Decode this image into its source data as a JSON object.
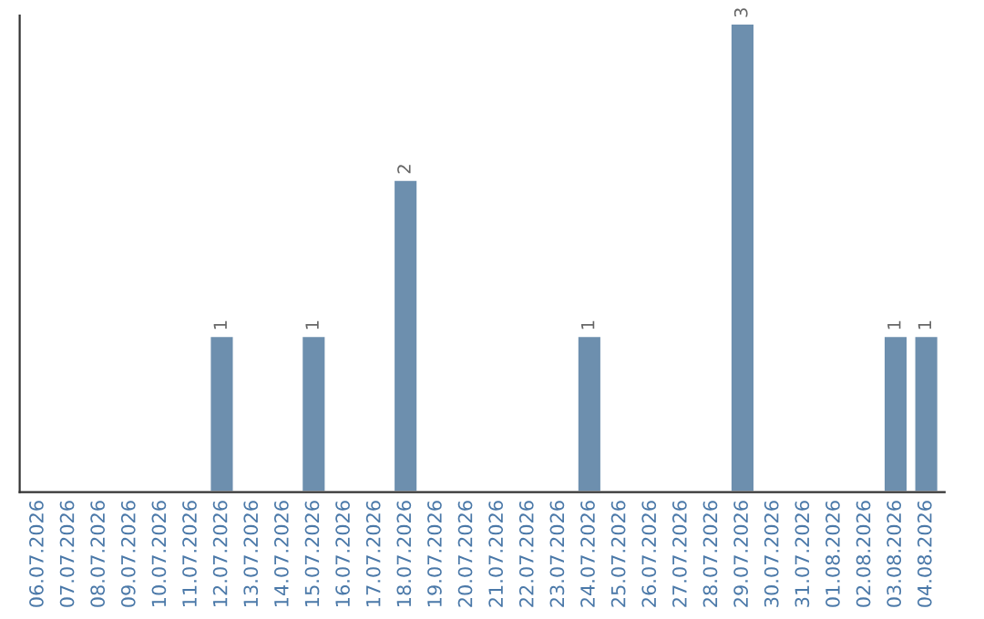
{
  "chart_data": {
    "type": "bar",
    "categories": [
      "06.07.2026",
      "07.07.2026",
      "08.07.2026",
      "09.07.2026",
      "10.07.2026",
      "11.07.2026",
      "12.07.2026",
      "13.07.2026",
      "14.07.2026",
      "15.07.2026",
      "16.07.2026",
      "17.07.2026",
      "18.07.2026",
      "19.07.2026",
      "20.07.2026",
      "21.07.2026",
      "22.07.2026",
      "23.07.2026",
      "24.07.2026",
      "25.07.2026",
      "26.07.2026",
      "27.07.2026",
      "28.07.2026",
      "29.07.2026",
      "30.07.2026",
      "31.07.2026",
      "01.08.2026",
      "02.08.2026",
      "03.08.2026",
      "04.08.2026"
    ],
    "values": [
      null,
      null,
      null,
      null,
      null,
      null,
      1,
      null,
      null,
      1,
      null,
      null,
      2,
      null,
      null,
      null,
      null,
      null,
      1,
      null,
      null,
      null,
      null,
      3,
      null,
      null,
      null,
      null,
      1,
      1
    ],
    "value_labels": [
      null,
      null,
      null,
      null,
      null,
      null,
      "1",
      null,
      null,
      "1",
      null,
      null,
      "2",
      null,
      null,
      null,
      null,
      null,
      "1",
      null,
      null,
      null,
      null,
      "3",
      null,
      null,
      null,
      null,
      "1",
      "1"
    ],
    "color": "#6d8fae",
    "ylim": [
      0,
      3.05
    ],
    "tick_labels": "x",
    "grid": false,
    "legend": false
  }
}
